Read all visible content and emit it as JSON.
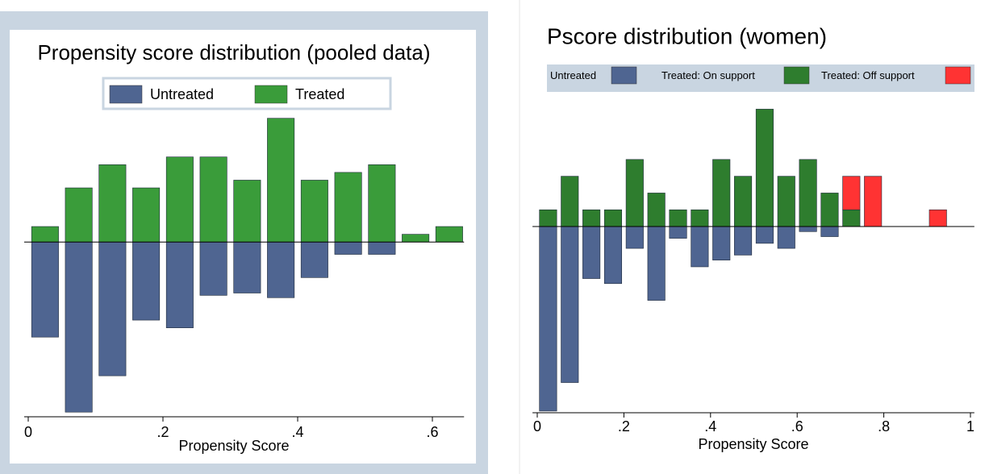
{
  "chart_data": [
    {
      "type": "mirror_histogram",
      "title": "Propensity score distribution (pooled data)",
      "xlabel": "Propensity Score",
      "bins": [
        0,
        0.05,
        0.1,
        0.15,
        0.2,
        0.25,
        0.3,
        0.35,
        0.4,
        0.45,
        0.5,
        0.55,
        0.6,
        0.65
      ],
      "series": [
        {
          "name": "Untreated",
          "color": "#4f6591",
          "values": [
            -12.3,
            -22,
            -17.3,
            -10.1,
            -11.1,
            -6.9,
            -6.6,
            -7.2,
            -4.6,
            -1.6,
            -1.6,
            0,
            0
          ]
        },
        {
          "name": "Treated",
          "color": "#3a9c3a",
          "values": [
            2,
            7,
            10,
            7,
            11,
            11,
            8,
            16,
            8,
            9,
            10,
            1,
            2
          ]
        }
      ],
      "xlim": [
        -0.006,
        0.647
      ],
      "ylim": [
        -22.6,
        16.7
      ],
      "xticks": [
        0,
        {
          "value": 0.2,
          "label": ".2"
        },
        {
          "value": 0.4,
          "label": ".4"
        },
        {
          "value": 0.6,
          "label": ".6"
        }
      ]
    },
    {
      "type": "mirror_histogram",
      "title": "Pscore distribution (women)",
      "xlabel": "Propensity Score",
      "bins": [
        0,
        0.05,
        0.1,
        0.15,
        0.2,
        0.25,
        0.3,
        0.35,
        0.4,
        0.45,
        0.5,
        0.55,
        0.6,
        0.65,
        0.7,
        0.75,
        0.8,
        0.85,
        0.9,
        0.95,
        1
      ],
      "series": [
        {
          "name": "Untreated",
          "color": "#4f6591",
          "values": [
            -11,
            -9.3,
            -3.1,
            -3.4,
            -1.3,
            -4.4,
            -0.7,
            -2.4,
            -2,
            -1.7,
            -1,
            -1.3,
            -0.3,
            -0.6,
            0,
            0,
            0,
            0,
            0,
            0
          ]
        },
        {
          "name": "Treated: On support",
          "color": "#2e7d2e",
          "values": [
            1,
            3,
            1,
            1,
            4,
            2,
            1,
            1,
            4,
            3,
            7,
            3,
            4,
            2,
            1,
            0,
            0,
            0,
            0,
            0
          ]
        },
        {
          "name": "Treated: Off support",
          "color": "#ff3333",
          "values": [
            0,
            0,
            0,
            0,
            0,
            0,
            0,
            0,
            0,
            0,
            0,
            0,
            0,
            0,
            2,
            3,
            0,
            0,
            1,
            0
          ]
        }
      ],
      "xlim": [
        -0.011,
        1.009
      ],
      "ylim": [
        -11.1,
        7.5
      ],
      "xticks": [
        0,
        {
          "value": 0.2,
          "label": ".2"
        },
        {
          "value": 0.4,
          "label": ".4"
        },
        {
          "value": 0.6,
          "label": ".6"
        },
        {
          "value": 0.8,
          "label": ".8"
        },
        1
      ]
    }
  ]
}
